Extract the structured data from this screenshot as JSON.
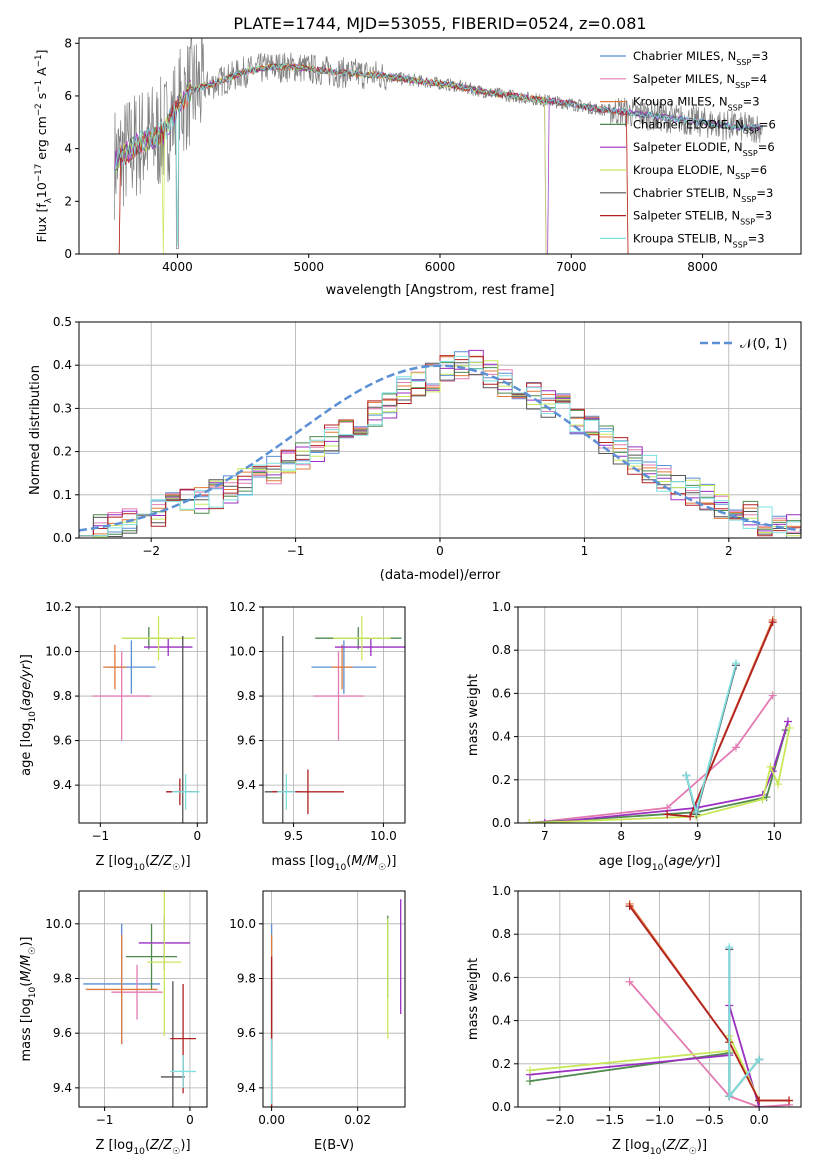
{
  "title": "PLATE=1744, MJD=53055, FIBERID=0524, z=0.081",
  "colors": {
    "Chabrier MILES": "#5b8fd6",
    "Salpeter MILES": "#e37bb2",
    "Kroupa MILES": "#e07a3a",
    "Chabrier ELODIE": "#4f8a4f",
    "Salpeter ELODIE": "#9b2fc2",
    "Kroupa ELODIE": "#c8e85a",
    "Chabrier STELIB": "#555555",
    "Salpeter STELIB": "#b22222",
    "Kroupa STELIB": "#7fe0e0",
    "data": "#808080",
    "normal": "#5b8fd6",
    "grid": "#b0b0b0"
  },
  "chart_data": [
    {
      "id": "spectrum",
      "type": "line",
      "title": "PLATE=1744, MJD=53055, FIBERID=0524, z=0.081",
      "xlabel": "wavelength [Angstrom, rest frame]",
      "ylabel": "Flux [fλ 10⁻¹⁷ erg cm⁻² s⁻¹ A⁻¹]",
      "xlim": [
        3250,
        8750
      ],
      "ylim": [
        0,
        8.2
      ],
      "xticks": [
        4000,
        5000,
        6000,
        7000,
        8000
      ],
      "yticks": [
        0,
        2,
        4,
        6,
        8
      ],
      "legend": [
        "Chabrier MILES, N_SSP=3",
        "Salpeter MILES, N_SSP=4",
        "Kroupa MILES, N_SSP=3",
        "Chabrier ELODIE, N_SSP=6",
        "Salpeter ELODIE, N_SSP=6",
        "Kroupa ELODIE, N_SSP=6",
        "Chabrier STELIB, N_SSP=3",
        "Salpeter STELIB, N_SSP=3",
        "Kroupa STELIB, N_SSP=3"
      ],
      "continuum": {
        "wavelength": [
          3520,
          3700,
          3900,
          4000,
          4100,
          4300,
          4500,
          4700,
          4900,
          5200,
          5500,
          5800,
          6100,
          6400,
          6700,
          7000,
          7200,
          7400,
          7700,
          8000,
          8300,
          8500
        ],
        "flux": [
          3.5,
          4.2,
          4.6,
          5.6,
          6.2,
          6.5,
          6.9,
          7.1,
          7.1,
          6.9,
          6.8,
          6.6,
          6.4,
          6.1,
          5.9,
          5.7,
          5.5,
          5.4,
          5.2,
          5.0,
          4.8,
          4.8
        ]
      }
    },
    {
      "id": "residuals",
      "type": "line",
      "xlabel": "(data-model)/error",
      "ylabel": "Normed distribution",
      "xlim": [
        -2.5,
        2.5
      ],
      "ylim": [
        0,
        0.5
      ],
      "xticks": [
        -2,
        -1,
        0,
        1,
        2
      ],
      "yticks": [
        0.0,
        0.1,
        0.2,
        0.3,
        0.4,
        0.5
      ],
      "legend": [
        "𝒩(0, 1)"
      ],
      "bin_edges_start": -2.5,
      "bin_width": 0.1,
      "histogram": [
        0.02,
        0.025,
        0.03,
        0.035,
        0.045,
        0.055,
        0.07,
        0.08,
        0.09,
        0.1,
        0.115,
        0.13,
        0.145,
        0.16,
        0.18,
        0.19,
        0.21,
        0.23,
        0.25,
        0.27,
        0.29,
        0.31,
        0.34,
        0.36,
        0.37,
        0.39,
        0.4,
        0.4,
        0.38,
        0.36,
        0.34,
        0.33,
        0.31,
        0.3,
        0.27,
        0.25,
        0.23,
        0.2,
        0.18,
        0.16,
        0.14,
        0.12,
        0.11,
        0.09,
        0.08,
        0.06,
        0.05,
        0.04,
        0.035,
        0.03
      ]
    },
    {
      "id": "age-vs-Z",
      "type": "scatter",
      "xlabel": "Z [log10(Z/Z☉)]",
      "ylabel": "age [log10(age/yr)]",
      "xlim": [
        -1.22,
        0.1
      ],
      "ylim": [
        9.23,
        10.2
      ],
      "xticks": [
        -1,
        0
      ],
      "yticks": [
        9.4,
        9.6,
        9.8,
        10.0,
        10.2
      ],
      "points": [
        {
          "model": "Chabrier MILES",
          "x": -0.68,
          "y": 9.93,
          "xerr": 0.25,
          "yerr": 0.12
        },
        {
          "model": "Salpeter MILES",
          "x": -0.78,
          "y": 9.8,
          "xerr": 0.3,
          "yerr": 0.2
        },
        {
          "model": "Kroupa MILES",
          "x": -0.85,
          "y": 9.93,
          "xerr": 0.12,
          "yerr": 0.1
        },
        {
          "model": "Chabrier ELODIE",
          "x": -0.5,
          "y": 10.06,
          "xerr": 0.25,
          "yerr": 0.05
        },
        {
          "model": "Salpeter ELODIE",
          "x": -0.3,
          "y": 10.02,
          "xerr": 0.25,
          "yerr": 0.04
        },
        {
          "model": "Kroupa ELODIE",
          "x": -0.4,
          "y": 10.06,
          "xerr": 0.38,
          "yerr": 0.1
        },
        {
          "model": "Chabrier STELIB",
          "x": -0.15,
          "y": 9.37,
          "xerr": 0.17,
          "yerr": 0.7
        },
        {
          "model": "Salpeter STELIB",
          "x": -0.18,
          "y": 9.37,
          "xerr": 0.14,
          "yerr": 0.06
        },
        {
          "model": "Kroupa STELIB",
          "x": -0.12,
          "y": 9.37,
          "xerr": 0.14,
          "yerr": 0.08
        }
      ]
    },
    {
      "id": "age-vs-mass",
      "type": "scatter",
      "xlabel": "mass [log10(M/M☉)]",
      "ylabel": "",
      "xlim": [
        9.33,
        10.12
      ],
      "ylim": [
        9.23,
        10.2
      ],
      "xticks": [
        9.5,
        10.0
      ],
      "yticks": [
        9.4,
        9.6,
        9.8,
        10.0,
        10.2
      ],
      "points": [
        {
          "model": "Chabrier MILES",
          "x": 9.78,
          "y": 9.93,
          "xerr": 0.18,
          "yerr": 0.12
        },
        {
          "model": "Salpeter MILES",
          "x": 9.75,
          "y": 9.8,
          "xerr": 0.14,
          "yerr": 0.2
        },
        {
          "model": "Kroupa MILES",
          "x": 9.77,
          "y": 9.93,
          "xerr": 0.06,
          "yerr": 0.1
        },
        {
          "model": "Chabrier ELODIE",
          "x": 9.86,
          "y": 10.06,
          "xerr": 0.24,
          "yerr": 0.05
        },
        {
          "model": "Salpeter ELODIE",
          "x": 9.93,
          "y": 10.02,
          "xerr": 0.2,
          "yerr": 0.04
        },
        {
          "model": "Kroupa ELODIE",
          "x": 9.88,
          "y": 10.06,
          "xerr": 0.16,
          "yerr": 0.1
        },
        {
          "model": "Chabrier STELIB",
          "x": 9.44,
          "y": 9.37,
          "xerr": 0.1,
          "yerr": 0.7
        },
        {
          "model": "Salpeter STELIB",
          "x": 9.58,
          "y": 9.37,
          "xerr": 0.2,
          "yerr": 0.1
        },
        {
          "model": "Kroupa STELIB",
          "x": 9.46,
          "y": 9.37,
          "xerr": 0.05,
          "yerr": 0.08
        }
      ]
    },
    {
      "id": "weight-vs-age",
      "type": "line",
      "xlabel": "age [log10(age/yr)]",
      "ylabel": "mass weight",
      "xlim": [
        6.65,
        10.35
      ],
      "ylim": [
        0,
        1
      ],
      "xticks": [
        7,
        8,
        9,
        10
      ],
      "yticks": [
        0.0,
        0.2,
        0.4,
        0.6,
        0.8,
        1.0
      ],
      "series": [
        {
          "model": "Chabrier MILES",
          "x": [
            8.85,
            8.98,
            9.5
          ],
          "y": [
            0.22,
            0.05,
            0.73
          ]
        },
        {
          "model": "Salpeter MILES",
          "x": [
            6.8,
            8.6,
            9.5,
            9.98
          ],
          "y": [
            0.0,
            0.07,
            0.35,
            0.59
          ]
        },
        {
          "model": "Kroupa MILES",
          "x": [
            8.6,
            8.9,
            9.98
          ],
          "y": [
            0.04,
            0.03,
            0.94
          ]
        },
        {
          "model": "Chabrier ELODIE",
          "x": [
            6.8,
            8.98,
            9.9,
            10.15
          ],
          "y": [
            0.0,
            0.05,
            0.12,
            0.43
          ]
        },
        {
          "model": "Salpeter ELODIE",
          "x": [
            7.0,
            8.98,
            9.85,
            9.98,
            10.18
          ],
          "y": [
            0.0,
            0.07,
            0.13,
            0.24,
            0.47
          ]
        },
        {
          "model": "Kroupa ELODIE",
          "x": [
            6.8,
            8.98,
            9.85,
            9.95,
            10.05,
            10.2
          ],
          "y": [
            0.0,
            0.03,
            0.11,
            0.26,
            0.18,
            0.44
          ]
        },
        {
          "model": "Chabrier STELIB",
          "x": [
            8.85,
            8.98,
            9.5
          ],
          "y": [
            0.22,
            0.04,
            0.73
          ]
        },
        {
          "model": "Salpeter STELIB",
          "x": [
            8.6,
            8.9,
            9.98
          ],
          "y": [
            0.04,
            0.03,
            0.93
          ]
        },
        {
          "model": "Kroupa STELIB",
          "x": [
            8.85,
            8.98,
            9.5
          ],
          "y": [
            0.22,
            0.05,
            0.74
          ]
        }
      ]
    },
    {
      "id": "mass-vs-Z",
      "type": "scatter",
      "xlabel": "Z [log10(Z/Z☉)]",
      "ylabel": "mass [log10(M/M☉)]",
      "xlim": [
        -1.3,
        0.2
      ],
      "ylim": [
        9.33,
        10.12
      ],
      "xticks": [
        -1,
        0
      ],
      "yticks": [
        9.4,
        9.6,
        9.8,
        10.0
      ],
      "points": [
        {
          "model": "Chabrier MILES",
          "x": -0.8,
          "y": 9.78,
          "xerr": 0.45,
          "yerr": 0.22
        },
        {
          "model": "Salpeter MILES",
          "x": -0.62,
          "y": 9.75,
          "xerr": 0.3,
          "yerr": 0.1
        },
        {
          "model": "Kroupa MILES",
          "x": -0.8,
          "y": 9.76,
          "xerr": 0.42,
          "yerr": 0.2
        },
        {
          "model": "Chabrier ELODIE",
          "x": -0.45,
          "y": 9.88,
          "xerr": 0.3,
          "yerr": 0.12
        },
        {
          "model": "Salpeter ELODIE",
          "x": -0.3,
          "y": 9.93,
          "xerr": 0.3,
          "yerr": 0.1
        },
        {
          "model": "Kroupa ELODIE",
          "x": -0.3,
          "y": 9.86,
          "xerr": 0.2,
          "yerr": 0.27
        },
        {
          "model": "Chabrier STELIB",
          "x": -0.2,
          "y": 9.44,
          "xerr": 0.14,
          "yerr": 0.35
        },
        {
          "model": "Salpeter STELIB",
          "x": -0.08,
          "y": 9.58,
          "xerr": 0.15,
          "yerr": 0.2
        },
        {
          "model": "Kroupa STELIB",
          "x": -0.08,
          "y": 9.46,
          "xerr": 0.15,
          "yerr": 0.06
        }
      ]
    },
    {
      "id": "mass-vs-EBV",
      "type": "scatter",
      "xlabel": "E(B-V)",
      "ylabel": "",
      "xlim": [
        -0.002,
        0.031
      ],
      "ylim": [
        9.33,
        10.12
      ],
      "xticks": [
        0.0,
        0.02
      ],
      "yticks": [
        9.4,
        9.6,
        9.8,
        10.0
      ],
      "points": [
        {
          "model": "Chabrier MILES",
          "x": 0.0,
          "y": 9.78,
          "xerr": 0,
          "yerr": 0.22
        },
        {
          "model": "Salpeter MILES",
          "x": 0.0,
          "y": 9.75,
          "xerr": 0,
          "yerr": 0.1
        },
        {
          "model": "Kroupa MILES",
          "x": 0.0,
          "y": 9.76,
          "xerr": 0,
          "yerr": 0.2
        },
        {
          "model": "Chabrier ELODIE",
          "x": 0.027,
          "y": 9.88,
          "xerr": 0,
          "yerr": 0.15
        },
        {
          "model": "Salpeter ELODIE",
          "x": 0.03,
          "y": 9.88,
          "xerr": 0,
          "yerr": 0.21
        },
        {
          "model": "Kroupa ELODIE",
          "x": 0.027,
          "y": 9.8,
          "xerr": 0,
          "yerr": 0.22
        },
        {
          "model": "Chabrier STELIB",
          "x": 0.0,
          "y": 9.44,
          "xerr": 0,
          "yerr": 0.35
        },
        {
          "model": "Salpeter STELIB",
          "x": 0.0,
          "y": 9.58,
          "xerr": 0,
          "yerr": 0.3
        },
        {
          "model": "Kroupa STELIB",
          "x": 0.0,
          "y": 9.46,
          "xerr": 0,
          "yerr": 0.12
        }
      ]
    },
    {
      "id": "weight-vs-Z",
      "type": "line",
      "xlabel": "Z [log10(Z/Z☉)]",
      "ylabel": "mass weight",
      "xlim": [
        -2.42,
        0.42
      ],
      "ylim": [
        0,
        1
      ],
      "xticks": [
        -2.0,
        -1.5,
        -1.0,
        -0.5,
        0.0
      ],
      "yticks": [
        0.0,
        0.2,
        0.4,
        0.6,
        0.8,
        1.0
      ],
      "series": [
        {
          "model": "Chabrier MILES",
          "x": [
            -0.3,
            -0.3,
            0.0
          ],
          "y": [
            0.73,
            0.05,
            0.22
          ]
        },
        {
          "model": "Salpeter MILES",
          "x": [
            -1.3,
            -0.3,
            0.0,
            0.3
          ],
          "y": [
            0.58,
            0.05,
            0.0,
            0.01
          ]
        },
        {
          "model": "Kroupa MILES",
          "x": [
            -1.3,
            -0.3,
            0.0,
            0.3
          ],
          "y": [
            0.94,
            0.3,
            0.03,
            0.03
          ]
        },
        {
          "model": "Chabrier ELODIE",
          "x": [
            -2.3,
            -0.3,
            -0.3,
            0.0
          ],
          "y": [
            0.12,
            0.25,
            0.05,
            0.22
          ]
        },
        {
          "model": "Salpeter ELODIE",
          "x": [
            -2.3,
            -0.3,
            -0.3,
            0.0
          ],
          "y": [
            0.15,
            0.24,
            0.47,
            0.0
          ]
        },
        {
          "model": "Kroupa ELODIE",
          "x": [
            -2.3,
            -0.3,
            -0.3,
            0.0
          ],
          "y": [
            0.17,
            0.26,
            0.33,
            0.03
          ]
        },
        {
          "model": "Chabrier STELIB",
          "x": [
            -0.3,
            -0.3,
            0.0
          ],
          "y": [
            0.73,
            0.05,
            0.22
          ]
        },
        {
          "model": "Salpeter STELIB",
          "x": [
            -1.3,
            -0.3,
            0.0,
            0.3
          ],
          "y": [
            0.93,
            0.3,
            0.03,
            0.03
          ]
        },
        {
          "model": "Kroupa STELIB",
          "x": [
            -0.3,
            -0.3,
            0.0
          ],
          "y": [
            0.74,
            0.05,
            0.22
          ]
        }
      ]
    }
  ]
}
